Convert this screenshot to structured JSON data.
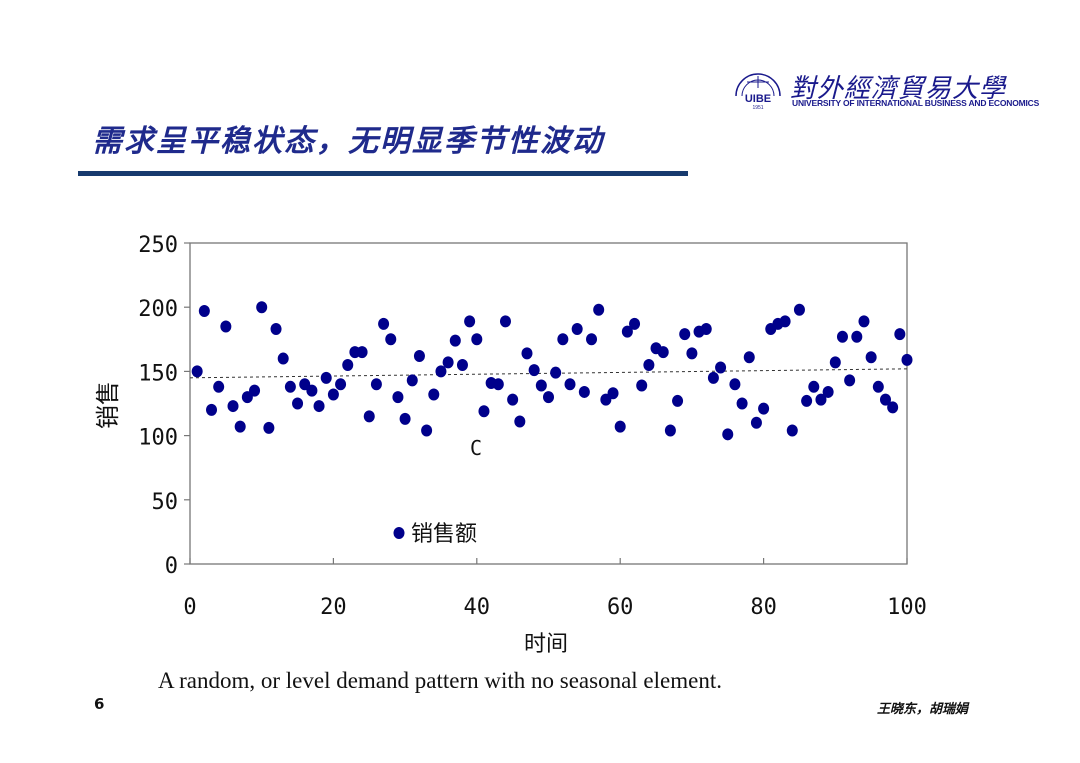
{
  "header": {
    "logo_script": "對外經濟貿易大學",
    "logo_subtitle": "UNIVERSITY OF INTERNATIONAL BUSINESS AND ECONOMICS",
    "logo_emblem_text": "UIBE",
    "logo_emblem_year": "1951",
    "title": "需求呈平稳状态，无明显季节性波动"
  },
  "colors": {
    "title": "#1f2a8c",
    "rule": "#173a6e",
    "points": "#00008b"
  },
  "chart_data": {
    "type": "scatter",
    "xlabel": "时间",
    "ylabel": "销售",
    "xlim": [
      0,
      100
    ],
    "ylim": [
      0,
      250
    ],
    "xticks": [
      0,
      20,
      40,
      60,
      80,
      100
    ],
    "yticks": [
      0,
      50,
      100,
      150,
      200,
      250
    ],
    "xtick_labels": [
      "0",
      "20",
      "40",
      "60",
      "80",
      "100"
    ],
    "ytick_labels": [
      "0",
      "50",
      "100",
      "150",
      "200",
      "250"
    ],
    "grid": false,
    "legend": {
      "placement": "bottom-center",
      "label": "销售额"
    },
    "annotation": "C",
    "trendline": {
      "style": "dashed",
      "start": [
        0,
        145
      ],
      "end": [
        100,
        152
      ]
    },
    "series": [
      {
        "name": "销售额",
        "x": [
          1,
          2,
          3,
          4,
          5,
          6,
          7,
          8,
          9,
          10,
          11,
          12,
          13,
          14,
          15,
          16,
          17,
          18,
          19,
          20,
          21,
          22,
          23,
          24,
          25,
          26,
          27,
          28,
          29,
          30,
          31,
          32,
          33,
          34,
          35,
          36,
          37,
          38,
          39,
          40,
          41,
          42,
          43,
          44,
          45,
          46,
          47,
          48,
          49,
          50,
          51,
          52,
          53,
          54,
          55,
          56,
          57,
          58,
          59,
          60,
          61,
          62,
          63,
          64,
          65,
          66,
          67,
          68,
          69,
          70,
          71,
          72,
          73,
          74,
          75,
          76,
          77,
          78,
          79,
          80,
          81,
          82,
          83,
          84,
          85,
          86,
          87,
          88,
          89,
          90,
          91,
          92,
          93,
          94,
          95,
          96,
          97,
          98,
          99,
          100
        ],
        "y": [
          150,
          197,
          120,
          138,
          185,
          123,
          107,
          130,
          135,
          200,
          106,
          183,
          160,
          138,
          125,
          140,
          135,
          123,
          145,
          132,
          140,
          155,
          165,
          165,
          115,
          140,
          187,
          175,
          130,
          113,
          143,
          162,
          104,
          132,
          150,
          157,
          174,
          155,
          189,
          175,
          119,
          141,
          140,
          189,
          128,
          111,
          164,
          151,
          139,
          130,
          149,
          175,
          140,
          183,
          134,
          175,
          198,
          128,
          133,
          107,
          181,
          187,
          139,
          155,
          168,
          165,
          104,
          127,
          179,
          164,
          181,
          183,
          145,
          153,
          101,
          140,
          125,
          161,
          110,
          121,
          183,
          187,
          189,
          104,
          198,
          127,
          138,
          128,
          134,
          157,
          177,
          143,
          177,
          189,
          161,
          138,
          128,
          122,
          179,
          159
        ]
      }
    ]
  },
  "footer": {
    "caption": "A random, or level demand pattern with no seasonal element.",
    "page_number": "6",
    "author": "王晓东，胡瑞娟"
  }
}
